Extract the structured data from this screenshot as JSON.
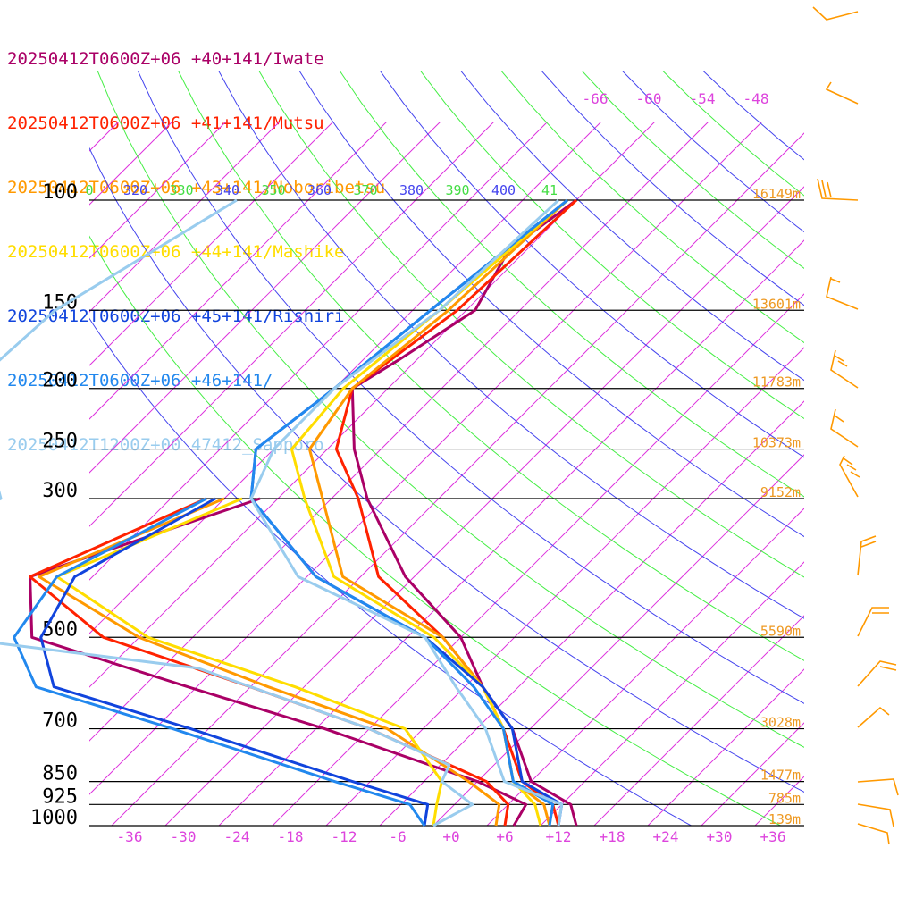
{
  "legend": [
    {
      "label": "20250412T0600Z+06 +40+141/Iwate",
      "color": "#aa0066"
    },
    {
      "label": "20250412T0600Z+06 +41+141/Mutsu",
      "color": "#ff2200"
    },
    {
      "label": "20250412T0600Z+06 +43+141/Noboribetsu",
      "color": "#ff9900"
    },
    {
      "label": "20250412T0600Z+06 +44+141/Mashike",
      "color": "#ffdd00"
    },
    {
      "label": "20250412T0600Z+06 +45+141/Rishiri",
      "color": "#1144dd"
    },
    {
      "label": "20250412T0600Z+06 +46+141/",
      "color": "#2288ee"
    },
    {
      "label": "20250412T1200Z+00 47412_Sapporo",
      "color": "#99ccee"
    }
  ],
  "chart_data": {
    "type": "line",
    "chart_kind": "skew-T log-p",
    "pressure_levels": [
      {
        "p": 100,
        "label": "100",
        "height": "16149m"
      },
      {
        "p": 150,
        "label": "150",
        "height": "13601m"
      },
      {
        "p": 200,
        "label": "200",
        "height": "11783m"
      },
      {
        "p": 250,
        "label": "250",
        "height": "10373m"
      },
      {
        "p": 300,
        "label": "300",
        "height": "9152m"
      },
      {
        "p": 500,
        "label": "500",
        "height": "5590m"
      },
      {
        "p": 700,
        "label": "700",
        "height": "3028m"
      },
      {
        "p": 850,
        "label": "850",
        "height": "1477m"
      },
      {
        "p": 925,
        "label": "925",
        "height": "785m"
      },
      {
        "p": 1000,
        "label": "1000",
        "height": "139m"
      }
    ],
    "x_ticks": [
      "-36",
      "-30",
      "-24",
      "-18",
      "-12",
      "-6",
      "+0",
      "+6",
      "+12",
      "+18",
      "+24",
      "+30",
      "+36"
    ],
    "theta_labels": [
      "0",
      "320",
      "330",
      "340",
      "350",
      "360",
      "370",
      "380",
      "390",
      "400",
      "41"
    ],
    "upper_isotherm_labels": [
      "-66",
      "-60",
      "-54",
      "-48"
    ],
    "series": [
      {
        "name": "20250412T0600Z+06 +40+141/Iwate",
        "color": "#aa0066",
        "temp": [
          [
            100,
            -56
          ],
          [
            120,
            -58
          ],
          [
            150,
            -55
          ],
          [
            180,
            -58
          ],
          [
            200,
            -60
          ],
          [
            250,
            -53
          ],
          [
            300,
            -46
          ],
          [
            400,
            -33
          ],
          [
            500,
            -20
          ],
          [
            600,
            -12
          ],
          [
            700,
            -4
          ],
          [
            850,
            4
          ],
          [
            925,
            11
          ],
          [
            1000,
            14
          ]
        ],
        "dew": [
          [
            300,
            -58
          ],
          [
            400,
            -75
          ],
          [
            500,
            -68
          ],
          [
            600,
            -45
          ],
          [
            700,
            -25
          ],
          [
            850,
            -2
          ],
          [
            925,
            6
          ],
          [
            1000,
            7
          ]
        ]
      },
      {
        "name": "20250412T0600Z+06 +41+141/Mutsu",
        "color": "#ff2200",
        "temp": [
          [
            100,
            -56
          ],
          [
            150,
            -57
          ],
          [
            200,
            -60
          ],
          [
            250,
            -55
          ],
          [
            300,
            -47
          ],
          [
            400,
            -36
          ],
          [
            500,
            -22
          ],
          [
            600,
            -12
          ],
          [
            700,
            -5
          ],
          [
            850,
            3
          ],
          [
            925,
            9
          ],
          [
            1000,
            12
          ]
        ],
        "dew": [
          [
            300,
            -64
          ],
          [
            400,
            -75
          ],
          [
            500,
            -60
          ],
          [
            600,
            -38
          ],
          [
            700,
            -20
          ],
          [
            850,
            -1
          ],
          [
            925,
            4
          ],
          [
            1000,
            6
          ]
        ]
      },
      {
        "name": "20250412T0600Z+06 +43+141/Noboribetsu",
        "color": "#ff9900",
        "temp": [
          [
            100,
            -57
          ],
          [
            150,
            -58
          ],
          [
            200,
            -60
          ],
          [
            250,
            -58
          ],
          [
            300,
            -51
          ],
          [
            400,
            -40
          ],
          [
            500,
            -22
          ],
          [
            600,
            -12
          ],
          [
            700,
            -5
          ],
          [
            850,
            2
          ],
          [
            925,
            8
          ],
          [
            1000,
            11
          ]
        ],
        "dew": [
          [
            300,
            -62
          ],
          [
            400,
            -74
          ],
          [
            500,
            -56
          ],
          [
            600,
            -36
          ],
          [
            700,
            -18
          ],
          [
            850,
            -3
          ],
          [
            925,
            3
          ],
          [
            1000,
            5
          ]
        ]
      },
      {
        "name": "20250412T0600Z+06 +44+141/Mashike",
        "color": "#ffdd00",
        "temp": [
          [
            100,
            -57
          ],
          [
            150,
            -59
          ],
          [
            200,
            -61
          ],
          [
            250,
            -60
          ],
          [
            300,
            -53
          ],
          [
            400,
            -41
          ],
          [
            500,
            -23
          ],
          [
            600,
            -12
          ],
          [
            700,
            -5
          ],
          [
            850,
            2
          ],
          [
            925,
            7
          ],
          [
            1000,
            10
          ]
        ],
        "dew": [
          [
            300,
            -60
          ],
          [
            400,
            -72
          ],
          [
            500,
            -55
          ],
          [
            600,
            -33
          ],
          [
            700,
            -16
          ],
          [
            850,
            -6
          ],
          [
            925,
            -4
          ],
          [
            1000,
            -2
          ]
        ]
      },
      {
        "name": "20250412T0600Z+06 +45+141/Rishiri",
        "color": "#1144dd",
        "temp": [
          [
            100,
            -57
          ],
          [
            150,
            -60
          ],
          [
            200,
            -62
          ],
          [
            250,
            -64
          ],
          [
            300,
            -59
          ],
          [
            400,
            -43
          ],
          [
            500,
            -24
          ],
          [
            600,
            -12
          ],
          [
            700,
            -4
          ],
          [
            850,
            3
          ],
          [
            925,
            10
          ],
          [
            1000,
            12
          ]
        ],
        "dew": [
          [
            300,
            -63
          ],
          [
            400,
            -70
          ],
          [
            500,
            -67
          ],
          [
            600,
            -60
          ],
          [
            700,
            -40
          ],
          [
            850,
            -16
          ],
          [
            925,
            -5
          ],
          [
            1000,
            -3
          ]
        ]
      },
      {
        "name": "20250412T0600Z+06 +46+141/",
        "color": "#2288ee",
        "temp": [
          [
            100,
            -57
          ],
          [
            150,
            -60
          ],
          [
            200,
            -62
          ],
          [
            250,
            -64
          ],
          [
            300,
            -59
          ],
          [
            400,
            -43
          ],
          [
            500,
            -24
          ],
          [
            600,
            -13
          ],
          [
            700,
            -5
          ],
          [
            850,
            2
          ],
          [
            925,
            9
          ],
          [
            1000,
            11
          ]
        ],
        "dew": [
          [
            300,
            -64
          ],
          [
            400,
            -72
          ],
          [
            500,
            -70
          ],
          [
            600,
            -62
          ],
          [
            700,
            -42
          ],
          [
            850,
            -18
          ],
          [
            925,
            -7
          ],
          [
            1000,
            -3
          ]
        ]
      },
      {
        "name": "20250412T1200Z+00 47412_Sapporo",
        "color": "#99ccee",
        "temp": [
          [
            100,
            -58
          ],
          [
            150,
            -59
          ],
          [
            200,
            -62
          ],
          [
            250,
            -62
          ],
          [
            300,
            -59
          ],
          [
            400,
            -45
          ],
          [
            500,
            -24
          ],
          [
            600,
            -15
          ],
          [
            700,
            -7
          ],
          [
            850,
            1
          ],
          [
            925,
            10
          ],
          [
            1000,
            12
          ]
        ],
        "dew": [
          [
            100,
            -94
          ],
          [
            150,
            -102
          ],
          [
            200,
            -103
          ],
          [
            250,
            -94
          ],
          [
            300,
            -87
          ],
          [
            400,
            -96
          ],
          [
            500,
            -77
          ],
          [
            560,
            -46
          ],
          [
            700,
            -20
          ],
          [
            800,
            -7
          ],
          [
            850,
            -6
          ],
          [
            925,
            0
          ],
          [
            1000,
            -2
          ]
        ]
      }
    ]
  }
}
